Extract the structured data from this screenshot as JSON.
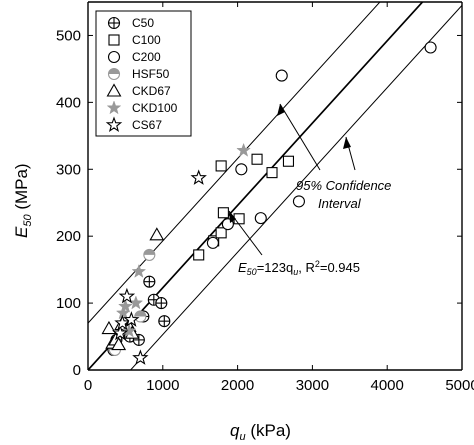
{
  "chart_data": {
    "type": "scatter",
    "xlim": [
      0,
      5000
    ],
    "ylim": [
      0,
      550
    ],
    "xticks": [
      0,
      1000,
      2000,
      3000,
      4000,
      5000
    ],
    "yticks": [
      0,
      100,
      200,
      300,
      400,
      500
    ],
    "xlabel": {
      "main": "q",
      "sub": "u",
      "rest": " (kPa)"
    },
    "ylabel": {
      "main": "E",
      "sub": "50",
      "rest": " (MPa)"
    },
    "grid": false,
    "legend_position": "top-left",
    "series": [
      {
        "name": "C50",
        "marker": "circle-plus",
        "color": "#000000",
        "points": [
          [
            380,
            45
          ],
          [
            560,
            50
          ],
          [
            680,
            45
          ],
          [
            740,
            80
          ],
          [
            820,
            132
          ],
          [
            880,
            105
          ],
          [
            980,
            100
          ],
          [
            1020,
            73
          ]
        ]
      },
      {
        "name": "C100",
        "marker": "square",
        "color": "#000000",
        "points": [
          [
            1480,
            172
          ],
          [
            1680,
            193
          ],
          [
            1780,
            205
          ],
          [
            1810,
            235
          ],
          [
            2020,
            226
          ],
          [
            1780,
            305
          ],
          [
            2260,
            315
          ],
          [
            2460,
            295
          ],
          [
            2680,
            312
          ]
        ]
      },
      {
        "name": "C200",
        "marker": "circle",
        "color": "#000000",
        "points": [
          [
            340,
            30
          ],
          [
            1670,
            190
          ],
          [
            1870,
            218
          ],
          [
            2050,
            300
          ],
          [
            2310,
            227
          ],
          [
            2590,
            440
          ],
          [
            2820,
            252
          ],
          [
            4580,
            482
          ]
        ]
      },
      {
        "name": "HSF50",
        "marker": "half-circle",
        "color": "#999999",
        "points": [
          [
            360,
            30
          ],
          [
            460,
            62
          ],
          [
            700,
            80
          ],
          [
            820,
            172
          ]
        ]
      },
      {
        "name": "CKD67",
        "marker": "triangle",
        "color": "#000000",
        "points": [
          [
            280,
            62
          ],
          [
            330,
            40
          ],
          [
            370,
            45
          ],
          [
            410,
            38
          ],
          [
            450,
            68
          ],
          [
            550,
            65
          ],
          [
            590,
            55
          ],
          [
            920,
            202
          ]
        ]
      },
      {
        "name": "CKD100",
        "marker": "star-filled",
        "color": "#999999",
        "points": [
          [
            470,
            85
          ],
          [
            500,
            95
          ],
          [
            550,
            58
          ],
          [
            640,
            100
          ],
          [
            680,
            147
          ],
          [
            2080,
            328
          ]
        ]
      },
      {
        "name": "CS67",
        "marker": "star-open",
        "color": "#000000",
        "points": [
          [
            430,
            55
          ],
          [
            460,
            70
          ],
          [
            520,
            110
          ],
          [
            580,
            75
          ],
          [
            700,
            18
          ],
          [
            1480,
            287
          ]
        ]
      }
    ],
    "fit_line": {
      "label": "E50=123qu, R²=0.945",
      "slope": 0.123,
      "confidence": 0.95,
      "band_offset": 70
    },
    "annotations": {
      "confidence": [
        "95% Confidence",
        "Interval"
      ],
      "equation": {
        "e": "E",
        "e_sub": "50",
        "mid": "=123q",
        "q_sub": "u",
        "tail": ", R",
        "sup": "2",
        "end": "=0.945"
      }
    }
  }
}
